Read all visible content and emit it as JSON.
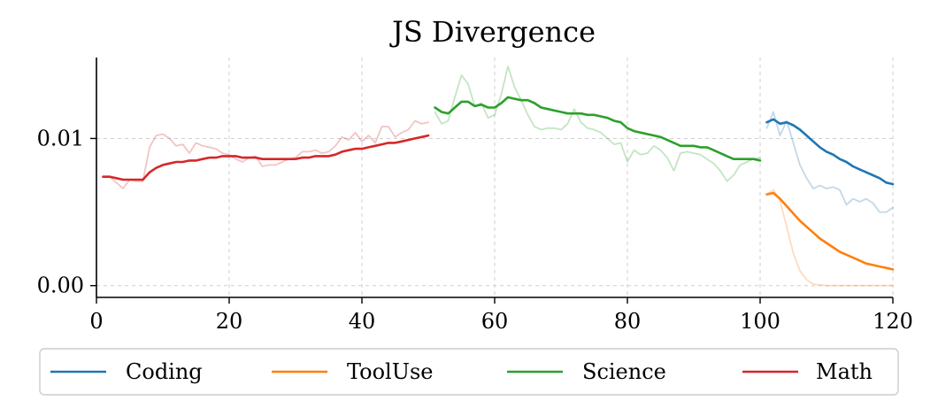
{
  "chart_data": {
    "type": "line",
    "title": "JS Divergence",
    "xlabel": "",
    "ylabel": "",
    "xlim": [
      0,
      120
    ],
    "ylim": [
      -0.0008,
      0.0155
    ],
    "xticks": [
      0,
      20,
      40,
      60,
      80,
      100,
      120
    ],
    "xtick_labels": [
      "0",
      "20",
      "40",
      "60",
      "80",
      "100",
      "120"
    ],
    "yticks": [
      0.0,
      0.01
    ],
    "ytick_labels": [
      "0.00",
      "0.01"
    ],
    "grid": true,
    "legend": {
      "placement": "bottom-center",
      "ncol": 4
    },
    "series": [
      {
        "name": "Coding",
        "color": "#1f77b4",
        "raw": {
          "x": [
            101,
            102,
            103,
            104,
            105,
            106,
            107,
            108,
            109,
            110,
            111,
            112,
            113,
            114,
            115,
            116,
            117,
            118,
            119,
            120
          ],
          "y": [
            0.0107,
            0.0118,
            0.0102,
            0.0112,
            0.0097,
            0.0082,
            0.0073,
            0.0066,
            0.0068,
            0.0066,
            0.0067,
            0.0065,
            0.0055,
            0.0059,
            0.0057,
            0.0059,
            0.0056,
            0.005,
            0.005,
            0.0053
          ]
        },
        "smoothed": {
          "x": [
            101,
            102,
            103,
            104,
            105,
            106,
            107,
            108,
            109,
            110,
            111,
            112,
            113,
            114,
            115,
            116,
            117,
            118,
            119,
            120
          ],
          "y": [
            0.0111,
            0.0113,
            0.011,
            0.0111,
            0.0109,
            0.0106,
            0.0102,
            0.0098,
            0.0094,
            0.0091,
            0.0089,
            0.0086,
            0.0084,
            0.0081,
            0.0079,
            0.0077,
            0.0075,
            0.0073,
            0.007,
            0.0069
          ]
        }
      },
      {
        "name": "ToolUse",
        "color": "#ff7f0e",
        "raw": {
          "x": [
            101,
            102,
            103,
            104,
            105,
            106,
            107,
            108,
            109,
            110,
            111,
            112,
            113,
            114,
            115,
            116,
            117,
            118,
            119,
            120
          ],
          "y": [
            0.0062,
            0.0065,
            0.0058,
            0.004,
            0.0022,
            0.001,
            0.0004,
            0.0001,
            5e-05,
            0,
            0,
            0,
            0,
            0,
            0,
            0,
            0,
            0,
            0,
            0
          ]
        },
        "smoothed": {
          "x": [
            101,
            102,
            103,
            104,
            105,
            106,
            107,
            108,
            109,
            110,
            111,
            112,
            113,
            114,
            115,
            116,
            117,
            118,
            119,
            120
          ],
          "y": [
            0.0062,
            0.0063,
            0.0059,
            0.0054,
            0.0049,
            0.0044,
            0.004,
            0.0036,
            0.0032,
            0.0029,
            0.0026,
            0.0023,
            0.0021,
            0.0019,
            0.0017,
            0.0015,
            0.0014,
            0.0013,
            0.0012,
            0.0011
          ]
        }
      },
      {
        "name": "Science",
        "color": "#2ca02c",
        "raw": {
          "x": [
            51,
            52,
            53,
            54,
            55,
            56,
            57,
            58,
            59,
            60,
            61,
            62,
            63,
            64,
            65,
            66,
            67,
            68,
            69,
            70,
            71,
            72,
            73,
            74,
            75,
            76,
            77,
            78,
            79,
            80,
            81,
            82,
            83,
            84,
            85,
            86,
            87,
            88,
            89,
            90,
            91,
            92,
            93,
            94,
            95,
            96,
            97,
            98,
            99,
            100
          ],
          "y": [
            0.0118,
            0.011,
            0.0112,
            0.0128,
            0.0143,
            0.0137,
            0.0122,
            0.0124,
            0.0114,
            0.0116,
            0.013,
            0.0149,
            0.0135,
            0.0126,
            0.0116,
            0.0108,
            0.0106,
            0.0107,
            0.0107,
            0.0106,
            0.011,
            0.012,
            0.0111,
            0.0107,
            0.0106,
            0.0104,
            0.01,
            0.0096,
            0.0097,
            0.0084,
            0.0092,
            0.0089,
            0.009,
            0.0095,
            0.0092,
            0.0087,
            0.0078,
            0.009,
            0.0091,
            0.009,
            0.0089,
            0.0086,
            0.0083,
            0.0078,
            0.0071,
            0.0075,
            0.0082,
            0.0084,
            0.0086,
            0.0087
          ]
        },
        "smoothed": {
          "x": [
            51,
            52,
            53,
            54,
            55,
            56,
            57,
            58,
            59,
            60,
            61,
            62,
            63,
            64,
            65,
            66,
            67,
            68,
            69,
            70,
            71,
            72,
            73,
            74,
            75,
            76,
            77,
            78,
            79,
            80,
            81,
            82,
            83,
            84,
            85,
            86,
            87,
            88,
            89,
            90,
            91,
            92,
            93,
            94,
            95,
            96,
            97,
            98,
            99,
            100
          ],
          "y": [
            0.0121,
            0.0118,
            0.0117,
            0.0121,
            0.0125,
            0.0125,
            0.0122,
            0.0123,
            0.0121,
            0.0121,
            0.0124,
            0.0128,
            0.0127,
            0.0126,
            0.0126,
            0.0124,
            0.0121,
            0.012,
            0.0119,
            0.0118,
            0.0117,
            0.0117,
            0.0117,
            0.0116,
            0.0116,
            0.0115,
            0.0114,
            0.0112,
            0.0111,
            0.0107,
            0.0105,
            0.0104,
            0.0103,
            0.0102,
            0.0101,
            0.0099,
            0.0097,
            0.0095,
            0.0095,
            0.0095,
            0.0094,
            0.0094,
            0.0092,
            0.009,
            0.0088,
            0.0086,
            0.0086,
            0.0086,
            0.0086,
            0.0085
          ]
        }
      },
      {
        "name": "Math",
        "color": "#d62728",
        "raw": {
          "x": [
            1,
            2,
            3,
            4,
            5,
            6,
            7,
            8,
            9,
            10,
            11,
            12,
            13,
            14,
            15,
            16,
            17,
            18,
            19,
            20,
            21,
            22,
            23,
            24,
            25,
            26,
            27,
            28,
            29,
            30,
            31,
            32,
            33,
            34,
            35,
            36,
            37,
            38,
            39,
            40,
            41,
            42,
            43,
            44,
            45,
            46,
            47,
            48,
            49,
            50
          ],
          "y": [
            0.0074,
            0.0074,
            0.007,
            0.0066,
            0.0072,
            0.0071,
            0.0071,
            0.0094,
            0.0102,
            0.0103,
            0.01,
            0.0095,
            0.0096,
            0.009,
            0.0097,
            0.0095,
            0.0094,
            0.0093,
            0.009,
            0.0089,
            0.0086,
            0.0084,
            0.0087,
            0.0088,
            0.0081,
            0.0082,
            0.0082,
            0.0084,
            0.0086,
            0.0087,
            0.0091,
            0.0091,
            0.0092,
            0.009,
            0.0091,
            0.0095,
            0.0101,
            0.0099,
            0.0104,
            0.0098,
            0.0102,
            0.0097,
            0.0108,
            0.0108,
            0.0101,
            0.0104,
            0.0106,
            0.0112,
            0.011,
            0.0111
          ]
        },
        "smoothed": {
          "x": [
            1,
            2,
            3,
            4,
            5,
            6,
            7,
            8,
            9,
            10,
            11,
            12,
            13,
            14,
            15,
            16,
            17,
            18,
            19,
            20,
            21,
            22,
            23,
            24,
            25,
            26,
            27,
            28,
            29,
            30,
            31,
            32,
            33,
            34,
            35,
            36,
            37,
            38,
            39,
            40,
            41,
            42,
            43,
            44,
            45,
            46,
            47,
            48,
            49,
            50
          ],
          "y": [
            0.0074,
            0.0074,
            0.0073,
            0.0072,
            0.0072,
            0.0072,
            0.0072,
            0.0077,
            0.008,
            0.0082,
            0.0083,
            0.0084,
            0.0084,
            0.0085,
            0.0085,
            0.0086,
            0.0087,
            0.0087,
            0.0088,
            0.0088,
            0.0088,
            0.0087,
            0.0087,
            0.0087,
            0.0086,
            0.0086,
            0.0086,
            0.0086,
            0.0086,
            0.0086,
            0.0087,
            0.0087,
            0.0088,
            0.0088,
            0.0088,
            0.0089,
            0.0091,
            0.0092,
            0.0093,
            0.0093,
            0.0094,
            0.0095,
            0.0096,
            0.0097,
            0.0097,
            0.0098,
            0.0099,
            0.01,
            0.0101,
            0.0102
          ]
        }
      }
    ]
  }
}
